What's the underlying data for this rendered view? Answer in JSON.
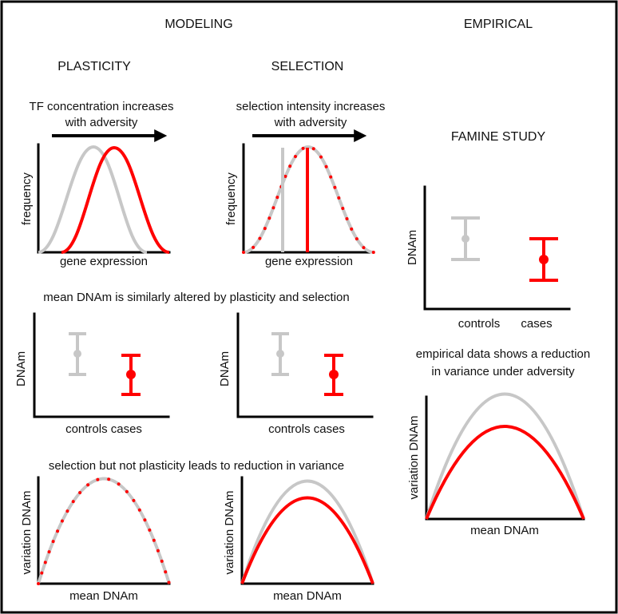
{
  "headings": {
    "modeling": "MODELING",
    "empirical": "EMPIRICAL",
    "plasticity": "PLASTICITY",
    "selection": "SELECTION",
    "famine_study": "FAMINE STUDY"
  },
  "captions": {
    "plasticity_line1": "TF concentration increases",
    "plasticity_line2": "with adversity",
    "selection_line1": "selection intensity increases",
    "selection_line2": "with adversity",
    "mean_caption": "mean DNAm is similarly altered by plasticity and selection",
    "variance_caption": "selection but not plasticity leads to reduction in variance",
    "empirical_line1": "empirical data shows a reduction",
    "empirical_line2": "in variance under adversity"
  },
  "axis_labels": {
    "frequency": "frequency",
    "gene_expression": "gene expression",
    "dnam": "DNAm",
    "controls_cases": "controls cases",
    "controls": "controls",
    "cases": "cases",
    "variation_dnam": "variation DNAm",
    "mean_dnam": "mean DNAm"
  },
  "colors": {
    "control": "#c7c7c7",
    "case": "#ff0000",
    "axis": "#000000",
    "frame": "#000000"
  },
  "icons": {
    "adversity_arrow": "right-arrow-icon"
  }
}
